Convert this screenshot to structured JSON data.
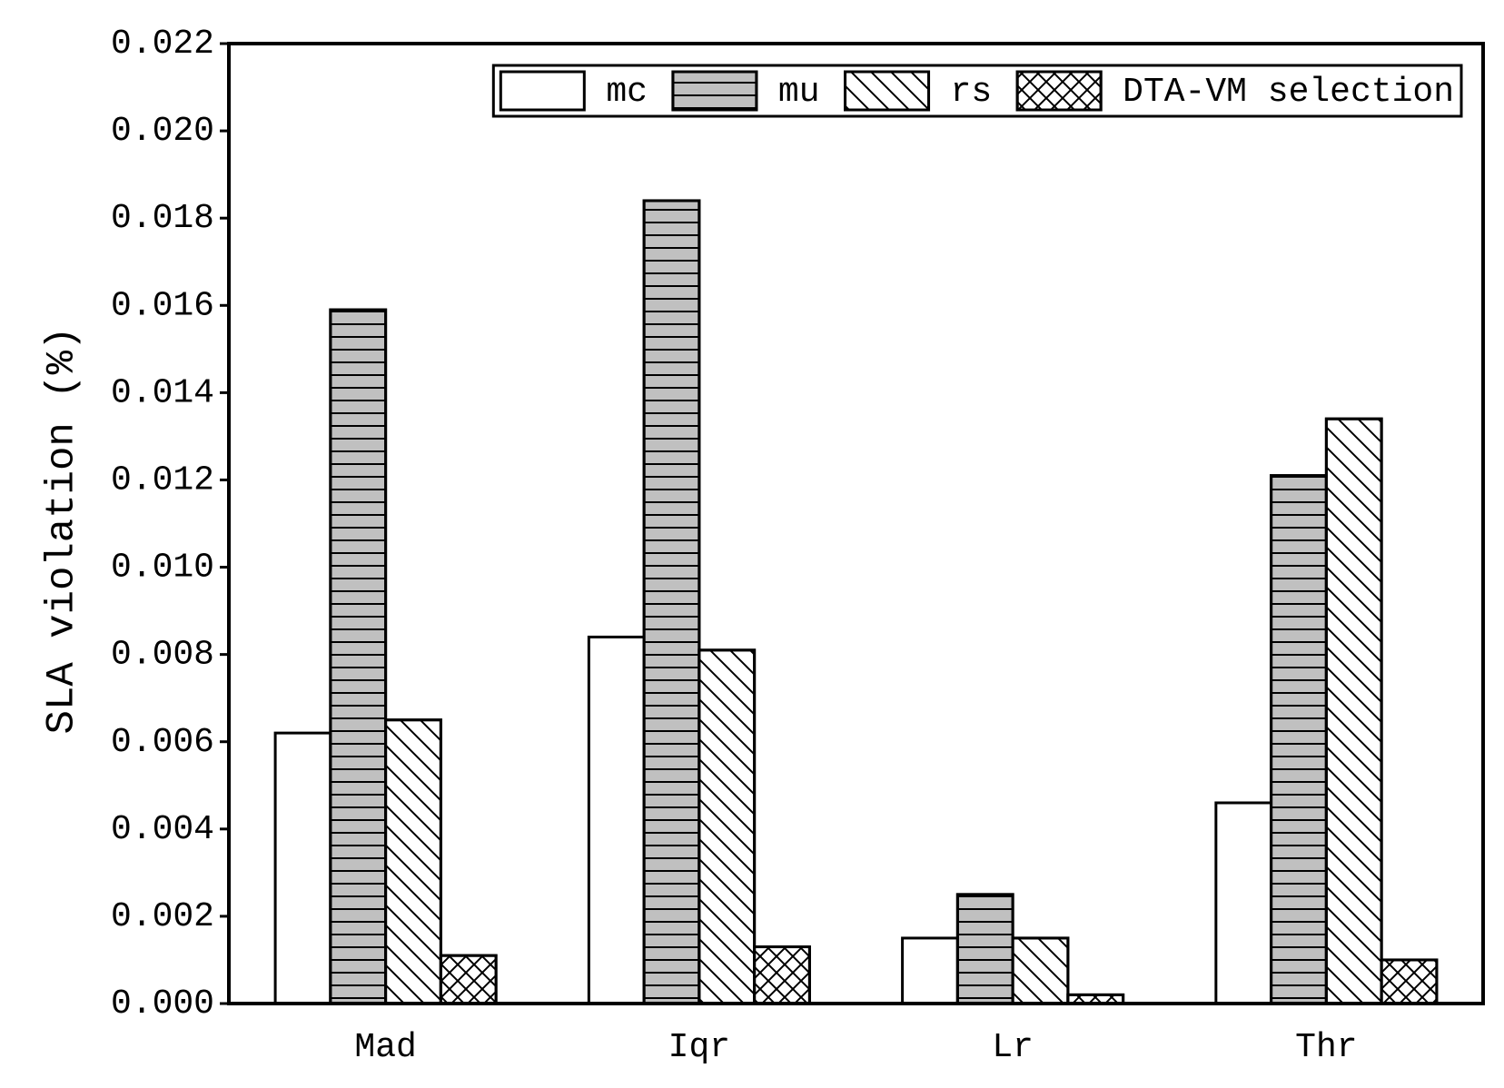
{
  "chart_data": {
    "type": "bar",
    "y_label": "SLA violation (%)",
    "categories": [
      "Mad",
      "Iqr",
      "Lr",
      "Thr"
    ],
    "series": [
      {
        "name": "mc",
        "color": "#ffffff",
        "hatch": "none",
        "values": [
          0.0062,
          0.0084,
          0.0015,
          0.0046
        ]
      },
      {
        "name": "mu",
        "color": "#c0c0c0",
        "hatch": "horizontal",
        "values": [
          0.0159,
          0.0184,
          0.0025,
          0.0121
        ]
      },
      {
        "name": "rs",
        "color": "#ffffff",
        "hatch": "diagonal",
        "values": [
          0.0065,
          0.0081,
          0.0015,
          0.0134
        ]
      },
      {
        "name": "DTA-VM selection",
        "color": "#ffffff",
        "hatch": "cross",
        "values": [
          0.0011,
          0.0013,
          0.0002,
          0.001
        ]
      }
    ],
    "ylim": [
      0,
      0.022
    ],
    "yticks": [
      {
        "value": 0,
        "label": "0.000"
      },
      {
        "value": 0.002,
        "label": "0.002"
      },
      {
        "value": 0.004,
        "label": "0.004"
      },
      {
        "value": 0.006,
        "label": "0.006"
      },
      {
        "value": 0.008,
        "label": "0.008"
      },
      {
        "value": 0.01,
        "label": "0.010"
      },
      {
        "value": 0.012,
        "label": "0.012"
      },
      {
        "value": 0.014,
        "label": "0.014"
      },
      {
        "value": 0.016,
        "label": "0.016"
      },
      {
        "value": 0.018,
        "label": "0.018"
      },
      {
        "value": 0.02,
        "label": "0.020"
      },
      {
        "value": 0.022,
        "label": "0.022"
      }
    ],
    "legend": "top-right"
  }
}
